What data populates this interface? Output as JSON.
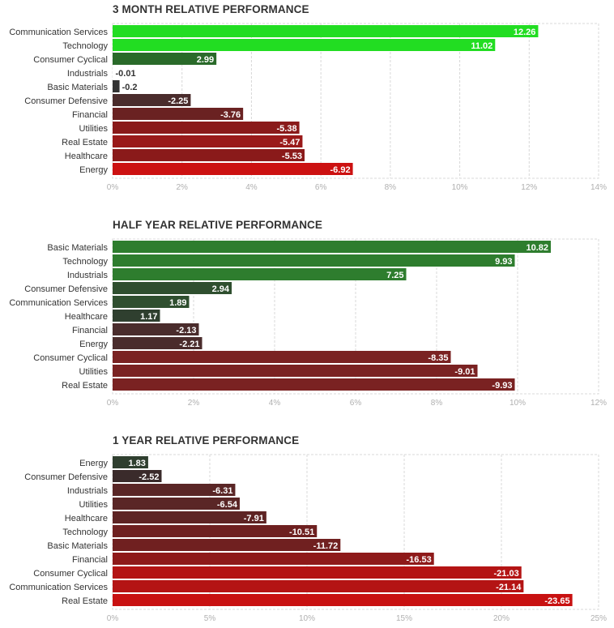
{
  "chart_data": [
    {
      "type": "bar",
      "orientation": "horizontal",
      "title": "3 MONTH RELATIVE PERFORMANCE",
      "categories": [
        "Communication Services",
        "Technology",
        "Consumer Cyclical",
        "Industrials",
        "Basic Materials",
        "Consumer Defensive",
        "Financial",
        "Utilities",
        "Real Estate",
        "Healthcare",
        "Energy"
      ],
      "values": [
        12.26,
        11.02,
        2.99,
        -0.01,
        -0.2,
        -2.25,
        -3.76,
        -5.38,
        -5.47,
        -5.53,
        -6.92
      ],
      "value_labels": [
        "12.26",
        "11.02",
        "2.99",
        "-0.01",
        "-0.2",
        "-2.25",
        "-3.76",
        "-5.38",
        "-5.47",
        "-5.53",
        "-6.92"
      ],
      "bar_colors": [
        "#22dd22",
        "#22dd22",
        "#2a6a2a",
        "#ffffff",
        "#333333",
        "#4a2c2c",
        "#6a2222",
        "#8a1a1a",
        "#9a1a1a",
        "#8a1a1a",
        "#cc1111"
      ],
      "label_colors": [
        "#ffffff",
        "#ffffff",
        "#ffffff",
        "#333333",
        "#333333",
        "#ffffff",
        "#ffffff",
        "#ffffff",
        "#ffffff",
        "#ffffff",
        "#ffffff"
      ],
      "label_inside": [
        true,
        true,
        true,
        false,
        false,
        true,
        true,
        true,
        true,
        true,
        true
      ],
      "xlim": [
        0,
        14
      ],
      "xticks": [
        0,
        2,
        4,
        6,
        8,
        10,
        12,
        14
      ],
      "xtick_labels": [
        "0%",
        "2%",
        "4%",
        "6%",
        "8%",
        "10%",
        "12%",
        "14%"
      ],
      "grid": true
    },
    {
      "type": "bar",
      "orientation": "horizontal",
      "title": "HALF YEAR RELATIVE PERFORMANCE",
      "categories": [
        "Basic Materials",
        "Technology",
        "Industrials",
        "Consumer Defensive",
        "Communication Services",
        "Healthcare",
        "Financial",
        "Energy",
        "Consumer Cyclical",
        "Utilities",
        "Real Estate"
      ],
      "values": [
        10.82,
        9.93,
        7.25,
        2.94,
        1.89,
        1.17,
        -2.13,
        -2.21,
        -8.35,
        -9.01,
        -9.93
      ],
      "value_labels": [
        "10.82",
        "9.93",
        "7.25",
        "2.94",
        "1.89",
        "1.17",
        "-2.13",
        "-2.21",
        "-8.35",
        "-9.01",
        "-9.93"
      ],
      "bar_colors": [
        "#2e7d2e",
        "#2e7d2e",
        "#2e7d2e",
        "#2f4f2f",
        "#2f4f2f",
        "#2f3f2f",
        "#4a2c2c",
        "#4a2c2c",
        "#7a2222",
        "#7a2222",
        "#7a2222"
      ],
      "label_colors": [
        "#ffffff",
        "#ffffff",
        "#ffffff",
        "#ffffff",
        "#ffffff",
        "#ffffff",
        "#ffffff",
        "#ffffff",
        "#ffffff",
        "#ffffff",
        "#ffffff"
      ],
      "label_inside": [
        true,
        true,
        true,
        true,
        true,
        true,
        true,
        true,
        true,
        true,
        true
      ],
      "xlim": [
        0,
        12
      ],
      "xticks": [
        0,
        2,
        4,
        6,
        8,
        10,
        12
      ],
      "xtick_labels": [
        "0%",
        "2%",
        "4%",
        "6%",
        "8%",
        "10%",
        "12%"
      ],
      "grid": true
    },
    {
      "type": "bar",
      "orientation": "horizontal",
      "title": "1 YEAR RELATIVE PERFORMANCE",
      "categories": [
        "Energy",
        "Consumer Defensive",
        "Industrials",
        "Utilities",
        "Healthcare",
        "Technology",
        "Basic Materials",
        "Financial",
        "Consumer Cyclical",
        "Communication Services",
        "Real Estate"
      ],
      "values": [
        1.83,
        -2.52,
        -6.31,
        -6.54,
        -7.91,
        -10.51,
        -11.72,
        -16.53,
        -21.03,
        -21.14,
        -23.65
      ],
      "value_labels": [
        "1.83",
        "-2.52",
        "-6.31",
        "-6.54",
        "-7.91",
        "-10.51",
        "-11.72",
        "-16.53",
        "-21.03",
        "-21.14",
        "-23.65"
      ],
      "bar_colors": [
        "#2f3f2f",
        "#3a2b2b",
        "#5a2626",
        "#5a2626",
        "#5e2424",
        "#6e2020",
        "#702020",
        "#8e1a1a",
        "#b41414",
        "#b41414",
        "#c81111"
      ],
      "label_colors": [
        "#ffffff",
        "#ffffff",
        "#ffffff",
        "#ffffff",
        "#ffffff",
        "#ffffff",
        "#ffffff",
        "#ffffff",
        "#ffffff",
        "#ffffff",
        "#ffffff"
      ],
      "label_inside": [
        true,
        true,
        true,
        true,
        true,
        true,
        true,
        true,
        true,
        true,
        true
      ],
      "xlim": [
        0,
        25
      ],
      "xticks": [
        0,
        5,
        10,
        15,
        20,
        25
      ],
      "xtick_labels": [
        "0%",
        "5%",
        "10%",
        "15%",
        "20%",
        "25%"
      ],
      "grid": true
    }
  ]
}
